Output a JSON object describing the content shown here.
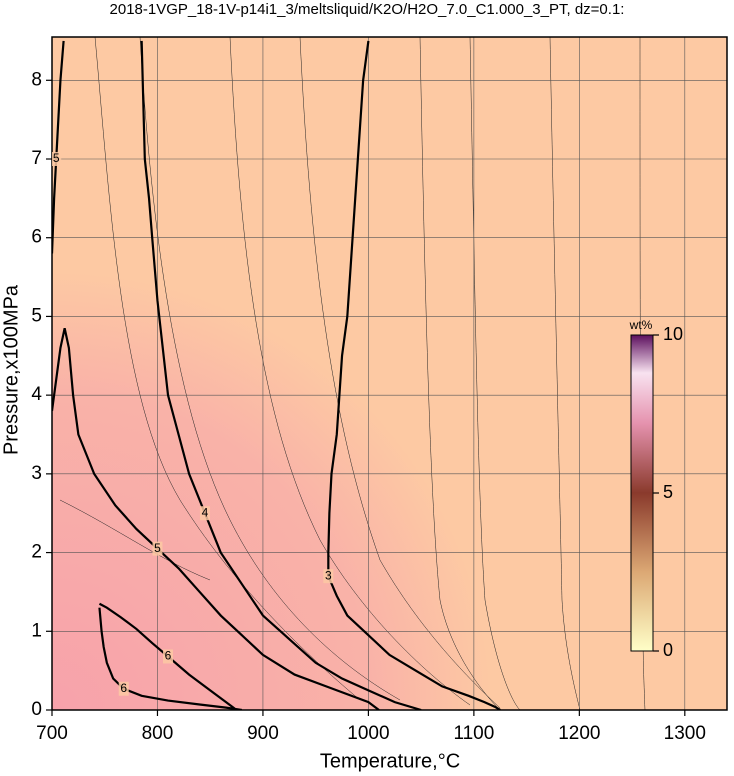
{
  "chart_data": {
    "type": "contour",
    "title": "2018-1VGP_18-1V-p14i1_3/meltsliquid/K2O/H2O_7.0_C1.000_3_PT, dz=0.1:",
    "x_label": "Temperature,°C",
    "y_label": "Pressure,x100MPa",
    "xlim": [
      700,
      1340
    ],
    "ylim": [
      0,
      8.55
    ],
    "xticks": [
      700,
      800,
      900,
      1000,
      1100,
      1200,
      1300
    ],
    "yticks": [
      0,
      1,
      2,
      3,
      4,
      5,
      6,
      7,
      8
    ],
    "grid": true,
    "contours": [
      {
        "level": 3,
        "x": [
          1000,
          995,
          990,
          985,
          980,
          975,
          970,
          965,
          963,
          962,
          962,
          970,
          980,
          1000,
          1020,
          1045,
          1070,
          1095,
          1110,
          1120,
          1125
        ],
        "y": [
          8.5,
          8,
          7,
          6,
          5,
          4.5,
          3.5,
          3,
          2.5,
          2,
          1.7,
          1.45,
          1.2,
          0.95,
          0.7,
          0.5,
          0.3,
          0.18,
          0.1,
          0.04,
          0
        ]
      },
      {
        "level": 4,
        "x": [
          785,
          786,
          788,
          792,
          795,
          800,
          805,
          810,
          820,
          830,
          845,
          860,
          880,
          900,
          925,
          950,
          975,
          1000,
          1025,
          1050
        ],
        "y": [
          8.5,
          8,
          7,
          6.5,
          6,
          5.2,
          4.6,
          4,
          3.5,
          3,
          2.5,
          2,
          1.6,
          1.2,
          0.9,
          0.6,
          0.4,
          0.25,
          0.1,
          0
        ]
      },
      {
        "level": 5,
        "x": [
          700,
          705,
          708,
          712,
          716,
          720,
          725,
          740,
          760,
          780,
          800,
          820,
          840,
          860,
          880,
          900,
          930,
          960,
          1000,
          1010,
          null,
          711,
          708,
          706,
          704,
          702,
          700
        ],
        "y": [
          3.8,
          4.3,
          4.6,
          4.85,
          4.6,
          4.0,
          3.5,
          3.0,
          2.6,
          2.3,
          2.05,
          1.8,
          1.5,
          1.2,
          0.95,
          0.7,
          0.45,
          0.3,
          0.1,
          0,
          null,
          8.5,
          8,
          7.5,
          7,
          6.5,
          5.8
        ]
      },
      {
        "level": 6,
        "x": [
          745,
          746,
          747,
          749,
          752,
          758,
          768,
          785,
          810,
          840,
          865,
          880,
          null,
          745,
          752,
          765,
          780,
          795,
          810,
          830,
          850,
          865,
          875
        ],
        "y": [
          1.3,
          1.15,
          1.0,
          0.8,
          0.6,
          0.4,
          0.27,
          0.18,
          0.12,
          0.07,
          0.03,
          0,
          null,
          1.35,
          1.3,
          1.18,
          1.03,
          0.85,
          0.68,
          0.45,
          0.25,
          0.1,
          0
        ]
      }
    ],
    "colorbar": {
      "label": "wt%",
      "lim": [
        0,
        10
      ],
      "ticks": [
        0,
        5,
        10
      ]
    }
  }
}
